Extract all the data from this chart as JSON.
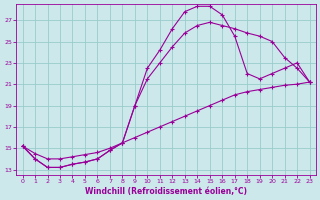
{
  "xlabel": "Windchill (Refroidissement éolien,°C)",
  "bg_color": "#cce8ea",
  "grid_color": "#99cccc",
  "line_color": "#990099",
  "x_ticks": [
    0,
    1,
    2,
    3,
    4,
    5,
    6,
    7,
    8,
    9,
    10,
    11,
    12,
    13,
    14,
    15,
    16,
    17,
    18,
    19,
    20,
    21,
    22,
    23
  ],
  "y_ticks": [
    13,
    15,
    17,
    19,
    21,
    23,
    25,
    27
  ],
  "xlim": [
    -0.5,
    23.5
  ],
  "ylim": [
    12.5,
    28.5
  ],
  "series1_x": [
    0,
    1,
    2,
    3,
    4,
    5,
    6,
    7,
    8,
    9,
    10,
    11,
    12,
    13,
    14,
    15,
    16,
    17,
    18,
    19,
    20,
    21,
    22,
    23
  ],
  "series1_y": [
    15.2,
    14.0,
    13.2,
    13.2,
    13.5,
    13.7,
    14.0,
    14.8,
    15.5,
    19.0,
    22.5,
    24.2,
    26.2,
    27.8,
    28.3,
    28.3,
    27.5,
    25.5,
    22.0,
    21.5,
    22.0,
    22.5,
    23.0,
    21.2
  ],
  "series2_x": [
    0,
    1,
    2,
    3,
    4,
    5,
    6,
    7,
    8,
    9,
    10,
    11,
    12,
    13,
    14,
    15,
    16,
    17,
    18,
    19,
    20,
    21,
    22,
    23
  ],
  "series2_y": [
    15.2,
    14.0,
    13.2,
    13.2,
    13.5,
    13.7,
    14.0,
    14.8,
    15.5,
    19.0,
    21.5,
    23.0,
    24.5,
    25.8,
    26.5,
    26.8,
    26.5,
    26.2,
    25.8,
    25.5,
    25.0,
    23.5,
    22.5,
    21.2
  ],
  "series3_x": [
    0,
    1,
    2,
    3,
    4,
    5,
    6,
    7,
    8,
    9,
    10,
    11,
    12,
    13,
    14,
    15,
    16,
    17,
    18,
    19,
    20,
    21,
    22,
    23
  ],
  "series3_y": [
    15.2,
    14.5,
    14.0,
    14.0,
    14.2,
    14.4,
    14.6,
    15.0,
    15.5,
    16.0,
    16.5,
    17.0,
    17.5,
    18.0,
    18.5,
    19.0,
    19.5,
    20.0,
    20.3,
    20.5,
    20.7,
    20.9,
    21.0,
    21.2
  ]
}
